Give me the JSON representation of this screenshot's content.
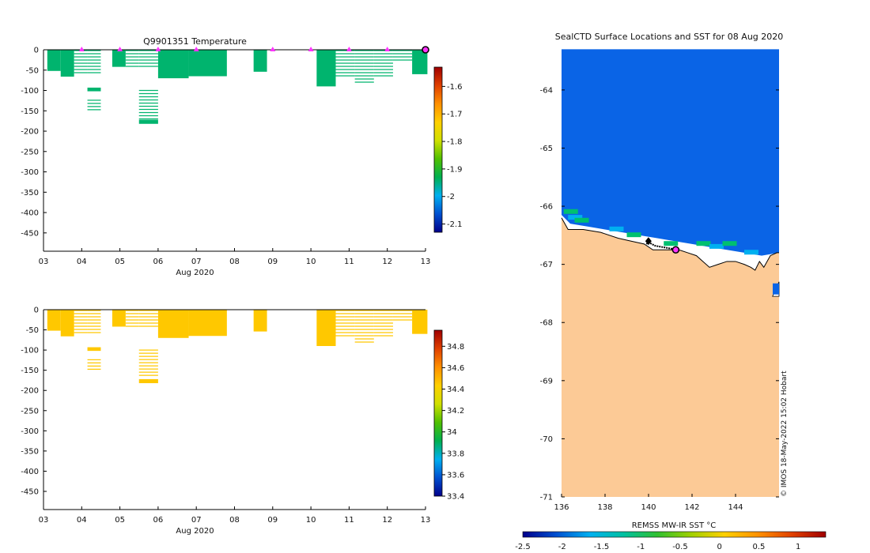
{
  "chart_data": [
    {
      "type": "heatmap",
      "id": "temperature",
      "title": "Q9901351  Temperature",
      "xlabel": "Aug 2020",
      "ylabel": "",
      "xlim": [
        3,
        13
      ],
      "ylim": [
        -495,
        0
      ],
      "x_ticks": [
        "03",
        "04",
        "05",
        "06",
        "07",
        "08",
        "09",
        "10",
        "11",
        "12",
        "13"
      ],
      "y_ticks": [
        0,
        -50,
        -100,
        -150,
        -200,
        -250,
        -300,
        -350,
        -400,
        -450
      ],
      "colorbar": {
        "min": -2.13,
        "max": -1.53,
        "ticks": [
          -1.6,
          -1.7,
          -1.8,
          -1.9,
          -2,
          -2.1
        ],
        "colors": [
          "#00008b",
          "#0050d0",
          "#00b0f0",
          "#00b050",
          "#50c000",
          "#d0e000",
          "#ffd000",
          "#ff9000",
          "#e04000",
          "#a00000"
        ]
      },
      "fill_color": "#00b46e",
      "profile_markers_x": [
        4.0,
        5.0,
        6.0,
        7.0,
        9.0,
        10.0,
        11.0,
        12.0
      ],
      "end_marker_x": 13.0,
      "profiles": [
        {
          "x0": 3.1,
          "x1": 3.45,
          "depth": 52,
          "style": "solid"
        },
        {
          "x0": 3.45,
          "x1": 3.8,
          "depth": 66,
          "style": "solid"
        },
        {
          "x0": 3.8,
          "x1": 4.15,
          "depth": 58,
          "style": "lines"
        },
        {
          "x0": 4.15,
          "x1": 4.5,
          "depth": 60,
          "style": "lines"
        },
        {
          "x0": 4.15,
          "x1": 4.5,
          "from": 93,
          "depth": 102,
          "style": "solid"
        },
        {
          "x0": 4.15,
          "x1": 4.5,
          "from": 122,
          "depth": 152,
          "style": "lines"
        },
        {
          "x0": 4.8,
          "x1": 5.15,
          "depth": 42,
          "style": "solid"
        },
        {
          "x0": 5.15,
          "x1": 5.5,
          "depth": 48,
          "style": "lines"
        },
        {
          "x0": 5.5,
          "x1": 6.0,
          "depth": 42,
          "style": "lines"
        },
        {
          "x0": 5.5,
          "x1": 6.0,
          "from": 98,
          "depth": 170,
          "style": "lines"
        },
        {
          "x0": 5.5,
          "x1": 6.0,
          "from": 172,
          "depth": 182,
          "style": "solid"
        },
        {
          "x0": 6.0,
          "x1": 6.8,
          "depth": 70,
          "style": "solid"
        },
        {
          "x0": 6.8,
          "x1": 7.8,
          "depth": 65,
          "style": "solid"
        },
        {
          "x0": 8.5,
          "x1": 8.85,
          "depth": 54,
          "style": "solid"
        },
        {
          "x0": 10.15,
          "x1": 10.65,
          "depth": 90,
          "style": "solid"
        },
        {
          "x0": 10.65,
          "x1": 11.15,
          "depth": 65,
          "style": "lines"
        },
        {
          "x0": 11.15,
          "x1": 11.65,
          "depth": 82,
          "style": "lines"
        },
        {
          "x0": 11.65,
          "x1": 12.15,
          "depth": 68,
          "style": "lines"
        },
        {
          "x0": 12.15,
          "x1": 12.65,
          "depth": 30,
          "style": "lines"
        },
        {
          "x0": 12.65,
          "x1": 13.05,
          "depth": 60,
          "style": "solid"
        }
      ]
    },
    {
      "type": "heatmap",
      "id": "salinity",
      "title": "",
      "xlabel": "Aug 2020",
      "ylabel": "",
      "xlim": [
        3,
        13
      ],
      "ylim": [
        -495,
        0
      ],
      "x_ticks": [
        "03",
        "04",
        "05",
        "06",
        "07",
        "08",
        "09",
        "10",
        "11",
        "12",
        "13"
      ],
      "y_ticks": [
        0,
        -50,
        -100,
        -150,
        -200,
        -250,
        -300,
        -350,
        -400,
        -450
      ],
      "colorbar": {
        "min": 33.4,
        "max": 34.95,
        "ticks": [
          34.8,
          34.6,
          34.4,
          34.2,
          34,
          33.8,
          33.6,
          33.4
        ],
        "colors": [
          "#00008b",
          "#0050d0",
          "#00b0f0",
          "#00b050",
          "#50c000",
          "#d0e000",
          "#ffd000",
          "#ff9000",
          "#e04000",
          "#a00000"
        ]
      },
      "fill_color": "#ffc800",
      "profiles": [
        {
          "x0": 3.1,
          "x1": 3.45,
          "depth": 52,
          "style": "solid"
        },
        {
          "x0": 3.45,
          "x1": 3.8,
          "depth": 66,
          "style": "solid"
        },
        {
          "x0": 3.8,
          "x1": 4.15,
          "depth": 58,
          "style": "lines"
        },
        {
          "x0": 4.15,
          "x1": 4.5,
          "depth": 60,
          "style": "lines"
        },
        {
          "x0": 4.15,
          "x1": 4.5,
          "from": 93,
          "depth": 102,
          "style": "solid"
        },
        {
          "x0": 4.15,
          "x1": 4.5,
          "from": 122,
          "depth": 152,
          "style": "lines"
        },
        {
          "x0": 4.8,
          "x1": 5.15,
          "depth": 42,
          "style": "solid"
        },
        {
          "x0": 5.15,
          "x1": 5.5,
          "depth": 48,
          "style": "lines"
        },
        {
          "x0": 5.5,
          "x1": 6.0,
          "depth": 42,
          "style": "lines"
        },
        {
          "x0": 5.5,
          "x1": 6.0,
          "from": 98,
          "depth": 170,
          "style": "lines"
        },
        {
          "x0": 5.5,
          "x1": 6.0,
          "from": 172,
          "depth": 182,
          "style": "solid"
        },
        {
          "x0": 6.0,
          "x1": 6.8,
          "depth": 70,
          "style": "solid"
        },
        {
          "x0": 6.8,
          "x1": 7.8,
          "depth": 65,
          "style": "solid"
        },
        {
          "x0": 8.5,
          "x1": 8.85,
          "depth": 54,
          "style": "solid"
        },
        {
          "x0": 10.15,
          "x1": 10.65,
          "depth": 90,
          "style": "solid"
        },
        {
          "x0": 10.65,
          "x1": 11.15,
          "depth": 65,
          "style": "lines"
        },
        {
          "x0": 11.15,
          "x1": 11.65,
          "depth": 82,
          "style": "lines"
        },
        {
          "x0": 11.65,
          "x1": 12.15,
          "depth": 68,
          "style": "lines"
        },
        {
          "x0": 12.15,
          "x1": 12.65,
          "depth": 30,
          "style": "lines"
        },
        {
          "x0": 12.65,
          "x1": 13.05,
          "depth": 60,
          "style": "solid"
        }
      ]
    },
    {
      "type": "heatmap",
      "id": "sst_map",
      "title": "SealCTD Surface Locations and SST for 08 Aug 2020",
      "xlabel": "",
      "ylabel": "",
      "xlim": [
        136,
        146
      ],
      "ylim": [
        -71,
        -63.2
      ],
      "x_ticks": [
        136,
        138,
        140,
        142,
        144
      ],
      "y_ticks": [
        -64,
        -65,
        -66,
        -67,
        -68,
        -69,
        -70,
        -71
      ],
      "ocean_color": "#0a64e6",
      "land_color": "#fcca96",
      "ocean_top_lat": -63.3,
      "coastline": [
        [
          136,
          -66.2
        ],
        [
          136.3,
          -66.4
        ],
        [
          137,
          -66.4
        ],
        [
          137.8,
          -66.45
        ],
        [
          138.6,
          -66.55
        ],
        [
          139.2,
          -66.6
        ],
        [
          139.8,
          -66.65
        ],
        [
          140.2,
          -66.75
        ],
        [
          140.8,
          -66.75
        ],
        [
          141.4,
          -66.75
        ],
        [
          141.8,
          -66.8
        ],
        [
          142.2,
          -66.85
        ],
        [
          142.5,
          -66.95
        ],
        [
          142.8,
          -67.05
        ],
        [
          143.2,
          -67.0
        ],
        [
          143.6,
          -66.95
        ],
        [
          144,
          -66.95
        ],
        [
          144.4,
          -67.0
        ],
        [
          144.7,
          -67.05
        ],
        [
          144.9,
          -67.1
        ],
        [
          145.1,
          -66.95
        ],
        [
          145.3,
          -67.05
        ],
        [
          145.6,
          -66.85
        ],
        [
          145.9,
          -66.8
        ],
        [
          146,
          -66.8
        ]
      ],
      "sea_ice_edge": [
        [
          136,
          -66.15
        ],
        [
          136.4,
          -66.3
        ],
        [
          137.2,
          -66.35
        ],
        [
          138,
          -66.4
        ],
        [
          138.8,
          -66.45
        ],
        [
          139.6,
          -66.5
        ],
        [
          140.4,
          -66.55
        ],
        [
          141.2,
          -66.6
        ],
        [
          142,
          -66.65
        ],
        [
          142.8,
          -66.7
        ],
        [
          143.6,
          -66.75
        ],
        [
          144.4,
          -66.8
        ],
        [
          145.2,
          -66.85
        ],
        [
          146,
          -66.8
        ]
      ],
      "ocean_patch": {
        "lon": [
          145.7,
          146
        ],
        "lat": [
          -67.3,
          -67.6
        ]
      },
      "seal_track": [
        [
          139.9,
          -66.65
        ],
        [
          140.0,
          -66.62
        ],
        [
          140.3,
          -66.68
        ],
        [
          140.6,
          -66.7
        ],
        [
          140.9,
          -66.72
        ],
        [
          141.2,
          -66.74
        ]
      ],
      "current_location": [
        141.25,
        -66.75
      ],
      "colorbar": {
        "label": "REMSS MW-IR SST °C",
        "ticks": [
          "-2.5",
          "-2",
          "-1.5",
          "-1",
          "-0.5",
          "0",
          "0.5",
          "1"
        ],
        "min": -2.5,
        "max": 1.35,
        "colors": [
          "#00008b",
          "#0050d0",
          "#00b0f0",
          "#00c0a0",
          "#30c030",
          "#a0d000",
          "#ffd000",
          "#ff9000",
          "#e04000",
          "#a00000"
        ]
      },
      "credit": "© IMOS 18-May-2022 15:02 Hobart"
    }
  ]
}
